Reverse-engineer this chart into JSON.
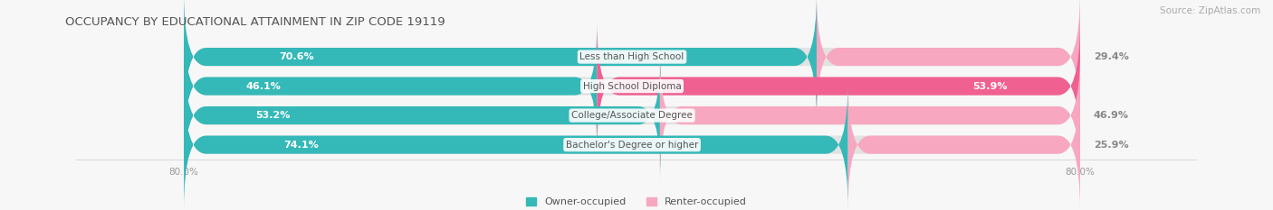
{
  "title": "OCCUPANCY BY EDUCATIONAL ATTAINMENT IN ZIP CODE 19119",
  "source": "Source: ZipAtlas.com",
  "categories": [
    "Less than High School",
    "High School Diploma",
    "College/Associate Degree",
    "Bachelor's Degree or higher"
  ],
  "owner_pct": [
    70.6,
    46.1,
    53.2,
    74.1
  ],
  "renter_pct": [
    29.4,
    53.9,
    46.9,
    25.9
  ],
  "owner_color": "#35b8b8",
  "renter_color_dark": "#f06090",
  "renter_color_light": "#f7a8c0",
  "bg_bar_color": "#e2e2e2",
  "title_color": "#555555",
  "source_color": "#aaaaaa",
  "label_color_white": "#ffffff",
  "label_color_dark": "#888888",
  "cat_label_color": "#555555",
  "tick_color": "#999999",
  "background": "#f7f7f7",
  "bar_height": 0.62,
  "total_width": 100.0,
  "x_axis_label": "80.0%",
  "title_fontsize": 9.5,
  "source_fontsize": 7.5,
  "bar_label_fontsize": 8,
  "cat_fontsize": 7.5,
  "tick_fontsize": 7.5,
  "legend_fontsize": 8
}
